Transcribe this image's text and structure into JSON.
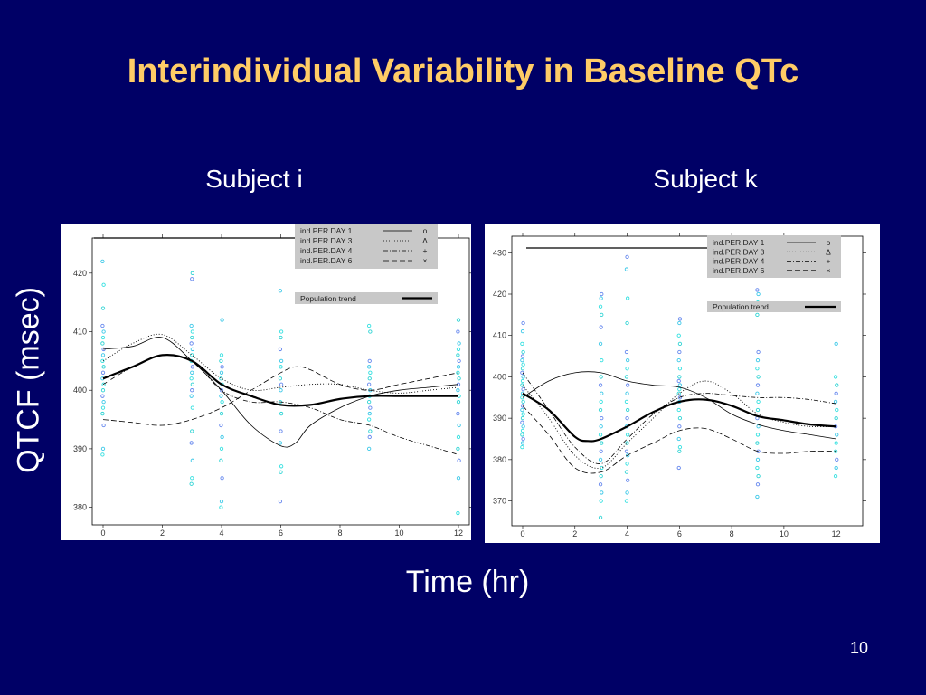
{
  "slide": {
    "title": "Interindividual Variability in Baseline QTc",
    "subject_i": "Subject i",
    "subject_k": "Subject k",
    "ylabel": "QTCF (msec)",
    "xlabel": "Time (hr)",
    "page_number": "10"
  },
  "chart_data": [
    {
      "type": "line",
      "panel": "Subject i",
      "xlim": [
        0,
        12
      ],
      "ylim": [
        377,
        426
      ],
      "x_ticks": [
        0,
        2,
        4,
        6,
        8,
        10,
        12
      ],
      "y_ticks": [
        380,
        390,
        400,
        410,
        420
      ],
      "grid": false,
      "legend_placement": "top-right",
      "legend": [
        "ind.PER.DAY 1",
        "ind.PER.DAY 3",
        "ind.PER.DAY 4",
        "ind.PER.DAY 6"
      ],
      "legend_symbols": [
        "o",
        "Δ",
        "+",
        "×"
      ],
      "legend2": "Population trend",
      "series": [
        {
          "name": "ind.PER.DAY 1",
          "style": "solid",
          "x": [
            0,
            1,
            2,
            3,
            4,
            5,
            6,
            6.5,
            7,
            8,
            9,
            10,
            11,
            12
          ],
          "y": [
            407,
            407.5,
            409,
            405,
            400,
            394,
            390.5,
            391,
            394,
            397,
            399,
            400,
            400.5,
            401
          ]
        },
        {
          "name": "ind.PER.DAY 3",
          "style": "dotted",
          "x": [
            0,
            1,
            2,
            3,
            4,
            5,
            6,
            7,
            8,
            9,
            10,
            11,
            12
          ],
          "y": [
            405,
            408,
            409.5,
            406,
            402,
            400,
            400.5,
            401,
            401,
            400,
            399.5,
            400,
            400.5
          ]
        },
        {
          "name": "ind.PER.DAY 4",
          "style": "dashdot",
          "x": [
            0,
            1,
            2,
            3,
            4,
            5,
            6,
            7,
            8,
            9,
            10,
            11,
            12
          ],
          "y": [
            401,
            404,
            406,
            405,
            400,
            398,
            398,
            397,
            395,
            394,
            392,
            390.5,
            389
          ]
        },
        {
          "name": "ind.PER.DAY 6",
          "style": "dashed",
          "x": [
            0,
            1,
            2,
            3,
            4,
            5,
            6,
            6.5,
            7,
            8,
            9,
            10,
            11,
            12
          ],
          "y": [
            395,
            394.5,
            394,
            395,
            397,
            400,
            403,
            404,
            403.5,
            401,
            400,
            401,
            402,
            403
          ]
        },
        {
          "name": "Population trend",
          "style": "bold",
          "x": [
            0,
            1,
            2,
            3,
            4,
            5,
            6,
            7,
            8,
            9,
            10,
            11,
            12
          ],
          "y": [
            402,
            404,
            406,
            405,
            401,
            399,
            397.5,
            397.5,
            398.5,
            399,
            399,
            399,
            399
          ]
        }
      ],
      "points": [
        {
          "x": 0,
          "y": [
            389,
            390,
            394,
            396,
            397,
            398,
            399,
            400,
            401,
            402,
            403,
            404,
            405,
            406,
            407,
            408,
            409,
            410,
            411,
            414,
            418,
            422
          ]
        },
        {
          "x": 3,
          "y": [
            384,
            385,
            388,
            391,
            393,
            397,
            399,
            400,
            401,
            402,
            403,
            404,
            405,
            406,
            407,
            408,
            409,
            410,
            411,
            419,
            420
          ]
        },
        {
          "x": 4,
          "y": [
            380,
            381,
            385,
            388,
            390,
            392,
            394,
            396,
            398,
            399,
            400,
            401,
            402,
            403,
            404,
            405,
            406,
            412
          ]
        },
        {
          "x": 6,
          "y": [
            381,
            386,
            387,
            391,
            393,
            396,
            398,
            400,
            401,
            402,
            404,
            405,
            407,
            409,
            410,
            417
          ]
        },
        {
          "x": 9,
          "y": [
            390,
            392,
            393,
            395,
            396,
            397,
            398,
            399,
            400,
            401,
            402,
            403,
            404,
            405,
            410,
            411
          ]
        },
        {
          "x": 12,
          "y": [
            379,
            385,
            388,
            390,
            392,
            394,
            396,
            398,
            399,
            400,
            401,
            402,
            403,
            404,
            405,
            406,
            407,
            408,
            410,
            412
          ]
        }
      ]
    },
    {
      "type": "line",
      "panel": "Subject k",
      "xlim": [
        0,
        12.6
      ],
      "ylim": [
        364,
        434
      ],
      "x_ticks": [
        0,
        2,
        4,
        6,
        8,
        10,
        12
      ],
      "y_ticks": [
        370,
        380,
        390,
        400,
        410,
        420,
        430
      ],
      "grid": false,
      "legend_placement": "top-right",
      "legend": [
        "ind.PER.DAY 1",
        "ind.PER.DAY 3",
        "ind.PER.DAY 4",
        "ind.PER.DAY 6"
      ],
      "legend_symbols": [
        "o",
        "Δ",
        "+",
        "×"
      ],
      "legend2": "Population trend",
      "series": [
        {
          "name": "ind.PER.DAY 1",
          "style": "solid",
          "x": [
            0,
            1,
            2,
            3,
            4,
            5,
            6,
            7,
            8,
            9,
            10,
            11,
            12
          ],
          "y": [
            395,
            399,
            401,
            401,
            399,
            398,
            397.5,
            395,
            391,
            388.5,
            387,
            386,
            385
          ]
        },
        {
          "name": "ind.PER.DAY 3",
          "style": "dotted",
          "x": [
            0,
            1,
            2,
            3,
            4,
            5,
            6,
            7,
            8,
            9,
            10,
            11,
            12
          ],
          "y": [
            398,
            390,
            381,
            378,
            384,
            390,
            396,
            399,
            396,
            391,
            389,
            388,
            388
          ]
        },
        {
          "name": "ind.PER.DAY 4",
          "style": "dashdot",
          "x": [
            0,
            1,
            2,
            3,
            4,
            5,
            6,
            7,
            8,
            9,
            10,
            11,
            12
          ],
          "y": [
            401,
            392,
            383,
            379,
            385,
            391,
            395,
            396,
            395.5,
            395,
            395,
            394.5,
            393.5
          ]
        },
        {
          "name": "ind.PER.DAY 6",
          "style": "dashed",
          "x": [
            0,
            1,
            2,
            3,
            4,
            5,
            6,
            7,
            8,
            9,
            10,
            11,
            12
          ],
          "y": [
            393,
            386,
            378,
            377,
            381,
            384,
            387,
            387.5,
            385,
            382,
            381.5,
            382,
            382
          ]
        },
        {
          "name": "Population trend",
          "style": "bold",
          "x": [
            0,
            1,
            2,
            2.5,
            3,
            4,
            5,
            6,
            7,
            8,
            9,
            10,
            11,
            12
          ],
          "y": [
            396,
            392,
            385.5,
            384.5,
            385,
            388,
            391.5,
            394,
            394.5,
            393,
            390.5,
            389.5,
            388.5,
            388
          ]
        }
      ],
      "points": [
        {
          "x": 0,
          "y": [
            383,
            384,
            385,
            386,
            387,
            388,
            389,
            390,
            391,
            392,
            393,
            394,
            395,
            396,
            397,
            398,
            399,
            400,
            401,
            402,
            403,
            404,
            405,
            406,
            408,
            411,
            413
          ]
        },
        {
          "x": 3,
          "y": [
            366,
            370,
            372,
            374,
            376,
            378,
            380,
            382,
            384,
            386,
            388,
            390,
            392,
            394,
            396,
            398,
            400,
            404,
            408,
            412,
            415,
            417,
            419,
            420
          ]
        },
        {
          "x": 4,
          "y": [
            370,
            372,
            375,
            377,
            379,
            381,
            382,
            384,
            386,
            388,
            390,
            392,
            394,
            396,
            398,
            400,
            402,
            404,
            406,
            413,
            419,
            426,
            429
          ]
        },
        {
          "x": 6,
          "y": [
            378,
            382,
            383,
            385,
            388,
            390,
            392,
            394,
            395,
            396,
            397,
            398,
            399,
            400,
            402,
            404,
            406,
            408,
            410,
            413,
            414
          ]
        },
        {
          "x": 9,
          "y": [
            371,
            374,
            376,
            378,
            380,
            382,
            384,
            386,
            388,
            390,
            392,
            394,
            396,
            398,
            400,
            402,
            404,
            406,
            415,
            418,
            420,
            421
          ]
        },
        {
          "x": 12,
          "y": [
            376,
            378,
            380,
            382,
            384,
            386,
            388,
            390,
            392,
            394,
            396,
            398,
            400,
            408
          ]
        }
      ]
    }
  ]
}
